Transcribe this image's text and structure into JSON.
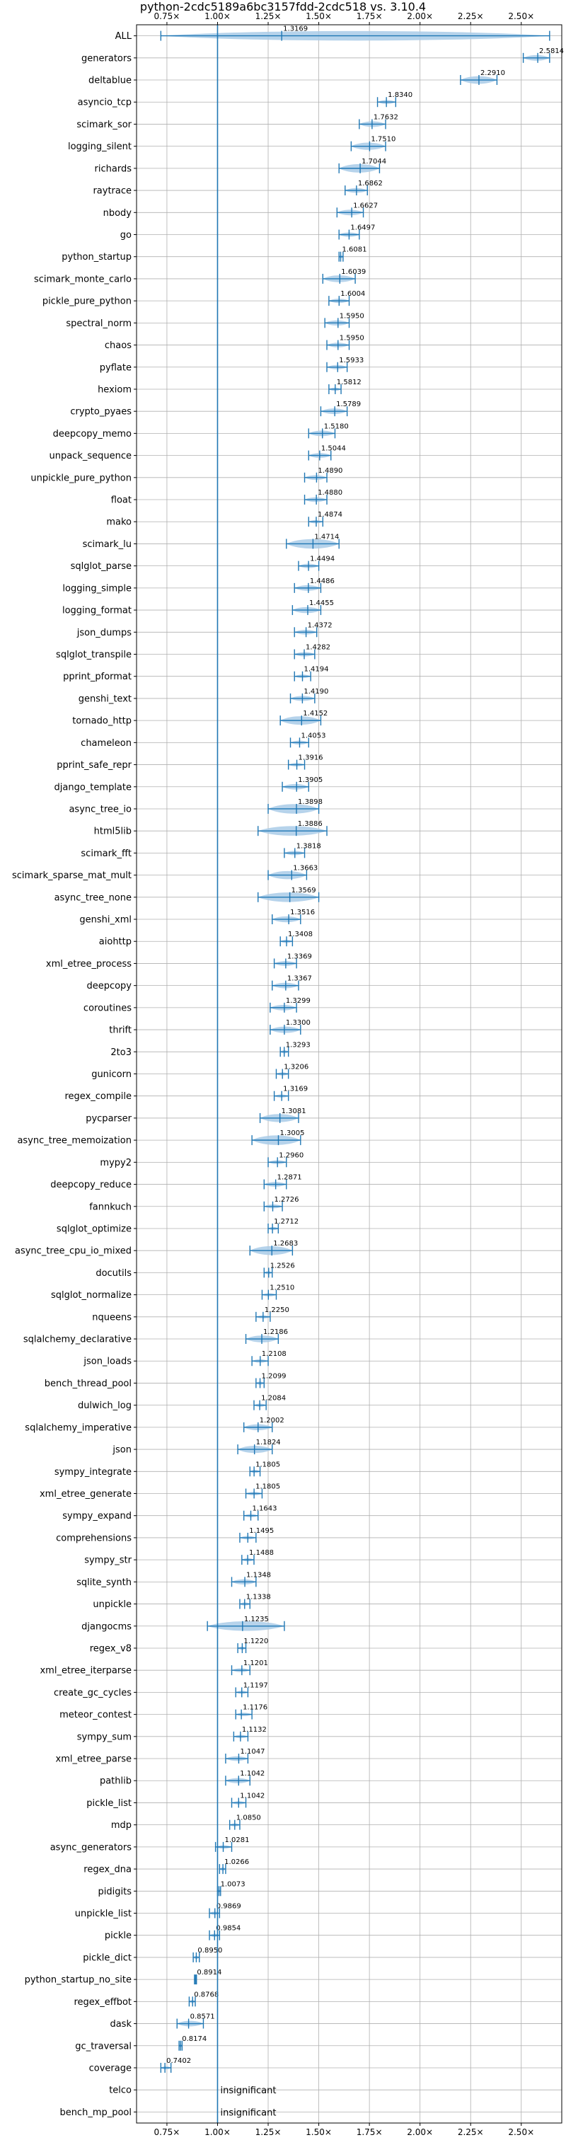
{
  "chart_data": {
    "type": "violin",
    "title": "python-2cdc5189a6bc3157fdd-2cdc518 vs. 3.10.4",
    "xlim": [
      0.6,
      2.7
    ],
    "x_ticks": [
      0.75,
      1.0,
      1.25,
      1.5,
      1.75,
      2.0,
      2.25,
      2.5
    ],
    "x_tick_labels": [
      "0.75×",
      "1.00×",
      "1.25×",
      "1.50×",
      "1.75×",
      "2.00×",
      "2.25×",
      "2.50×"
    ],
    "ticks_top_and_bottom": true,
    "grid": true,
    "reference_line": 1.0,
    "colors": {
      "violin": "#a9cbe8",
      "marker": "#1f77b4",
      "grid": "#b0b0b0"
    },
    "insignificant_label": "insignificant",
    "benchmarks": [
      {
        "name": "ALL",
        "value": 1.3169,
        "label": "1.3169",
        "low": 0.72,
        "high": 2.64
      },
      {
        "name": "generators",
        "value": 2.5814,
        "label": "2.5814",
        "low": 2.51,
        "high": 2.64
      },
      {
        "name": "deltablue",
        "value": 2.291,
        "label": "2.2910",
        "low": 2.2,
        "high": 2.38
      },
      {
        "name": "asyncio_tcp",
        "value": 1.834,
        "label": "1.8340",
        "low": 1.79,
        "high": 1.88
      },
      {
        "name": "scimark_sor",
        "value": 1.7632,
        "label": "1.7632",
        "low": 1.7,
        "high": 1.83
      },
      {
        "name": "logging_silent",
        "value": 1.751,
        "label": "1.7510",
        "low": 1.66,
        "high": 1.83
      },
      {
        "name": "richards",
        "value": 1.7044,
        "label": "1.7044",
        "low": 1.6,
        "high": 1.8
      },
      {
        "name": "raytrace",
        "value": 1.6862,
        "label": "1.6862",
        "low": 1.63,
        "high": 1.74
      },
      {
        "name": "nbody",
        "value": 1.6627,
        "label": "1.6627",
        "low": 1.59,
        "high": 1.72
      },
      {
        "name": "go",
        "value": 1.6497,
        "label": "1.6497",
        "low": 1.6,
        "high": 1.7
      },
      {
        "name": "python_startup",
        "value": 1.6081,
        "label": "1.6081",
        "low": 1.6,
        "high": 1.62
      },
      {
        "name": "scimark_monte_carlo",
        "value": 1.6039,
        "label": "1.6039",
        "low": 1.52,
        "high": 1.68
      },
      {
        "name": "pickle_pure_python",
        "value": 1.6004,
        "label": "1.6004",
        "low": 1.55,
        "high": 1.65
      },
      {
        "name": "spectral_norm",
        "value": 1.595,
        "label": "1.5950",
        "low": 1.53,
        "high": 1.65
      },
      {
        "name": "chaos",
        "value": 1.595,
        "label": "1.5950",
        "low": 1.54,
        "high": 1.65
      },
      {
        "name": "pyflate",
        "value": 1.5933,
        "label": "1.5933",
        "low": 1.54,
        "high": 1.64
      },
      {
        "name": "hexiom",
        "value": 1.5812,
        "label": "1.5812",
        "low": 1.55,
        "high": 1.61
      },
      {
        "name": "crypto_pyaes",
        "value": 1.5789,
        "label": "1.5789",
        "low": 1.51,
        "high": 1.64
      },
      {
        "name": "deepcopy_memo",
        "value": 1.518,
        "label": "1.5180",
        "low": 1.45,
        "high": 1.58
      },
      {
        "name": "unpack_sequence",
        "value": 1.5044,
        "label": "1.5044",
        "low": 1.45,
        "high": 1.56
      },
      {
        "name": "unpickle_pure_python",
        "value": 1.489,
        "label": "1.4890",
        "low": 1.43,
        "high": 1.54
      },
      {
        "name": "float",
        "value": 1.488,
        "label": "1.4880",
        "low": 1.43,
        "high": 1.54
      },
      {
        "name": "mako",
        "value": 1.4874,
        "label": "1.4874",
        "low": 1.45,
        "high": 1.52
      },
      {
        "name": "scimark_lu",
        "value": 1.4714,
        "label": "1.4714",
        "low": 1.34,
        "high": 1.6
      },
      {
        "name": "sqlglot_parse",
        "value": 1.4494,
        "label": "1.4494",
        "low": 1.4,
        "high": 1.5
      },
      {
        "name": "logging_simple",
        "value": 1.4486,
        "label": "1.4486",
        "low": 1.38,
        "high": 1.51
      },
      {
        "name": "logging_format",
        "value": 1.4455,
        "label": "1.4455",
        "low": 1.37,
        "high": 1.51
      },
      {
        "name": "json_dumps",
        "value": 1.4372,
        "label": "1.4372",
        "low": 1.38,
        "high": 1.49
      },
      {
        "name": "sqlglot_transpile",
        "value": 1.4282,
        "label": "1.4282",
        "low": 1.38,
        "high": 1.48
      },
      {
        "name": "pprint_pformat",
        "value": 1.4194,
        "label": "1.4194",
        "low": 1.38,
        "high": 1.46
      },
      {
        "name": "genshi_text",
        "value": 1.419,
        "label": "1.4190",
        "low": 1.36,
        "high": 1.48
      },
      {
        "name": "tornado_http",
        "value": 1.4152,
        "label": "1.4152",
        "low": 1.31,
        "high": 1.51
      },
      {
        "name": "chameleon",
        "value": 1.4053,
        "label": "1.4053",
        "low": 1.36,
        "high": 1.45
      },
      {
        "name": "pprint_safe_repr",
        "value": 1.3916,
        "label": "1.3916",
        "low": 1.35,
        "high": 1.43
      },
      {
        "name": "django_template",
        "value": 1.3905,
        "label": "1.3905",
        "low": 1.32,
        "high": 1.45
      },
      {
        "name": "async_tree_io",
        "value": 1.3898,
        "label": "1.3898",
        "low": 1.25,
        "high": 1.5
      },
      {
        "name": "html5lib",
        "value": 1.3886,
        "label": "1.3886",
        "low": 1.2,
        "high": 1.54
      },
      {
        "name": "scimark_fft",
        "value": 1.3818,
        "label": "1.3818",
        "low": 1.33,
        "high": 1.43
      },
      {
        "name": "scimark_sparse_mat_mult",
        "value": 1.3663,
        "label": "1.3663",
        "low": 1.25,
        "high": 1.44
      },
      {
        "name": "async_tree_none",
        "value": 1.3569,
        "label": "1.3569",
        "low": 1.2,
        "high": 1.5
      },
      {
        "name": "genshi_xml",
        "value": 1.3516,
        "label": "1.3516",
        "low": 1.27,
        "high": 1.41
      },
      {
        "name": "aiohttp",
        "value": 1.3408,
        "label": "1.3408",
        "low": 1.31,
        "high": 1.37
      },
      {
        "name": "xml_etree_process",
        "value": 1.3369,
        "label": "1.3369",
        "low": 1.28,
        "high": 1.39
      },
      {
        "name": "deepcopy",
        "value": 1.3367,
        "label": "1.3367",
        "low": 1.27,
        "high": 1.4
      },
      {
        "name": "coroutines",
        "value": 1.3299,
        "label": "1.3299",
        "low": 1.26,
        "high": 1.39
      },
      {
        "name": "thrift",
        "value": 1.33,
        "label": "1.3300",
        "low": 1.26,
        "high": 1.41
      },
      {
        "name": "2to3",
        "value": 1.3293,
        "label": "1.3293",
        "low": 1.31,
        "high": 1.35
      },
      {
        "name": "gunicorn",
        "value": 1.3206,
        "label": "1.3206",
        "low": 1.29,
        "high": 1.35
      },
      {
        "name": "regex_compile",
        "value": 1.3169,
        "label": "1.3169",
        "low": 1.28,
        "high": 1.35
      },
      {
        "name": "pycparser",
        "value": 1.3081,
        "label": "1.3081",
        "low": 1.21,
        "high": 1.4
      },
      {
        "name": "async_tree_memoization",
        "value": 1.3005,
        "label": "1.3005",
        "low": 1.17,
        "high": 1.41
      },
      {
        "name": "mypy2",
        "value": 1.296,
        "label": "1.2960",
        "low": 1.25,
        "high": 1.34
      },
      {
        "name": "deepcopy_reduce",
        "value": 1.2871,
        "label": "1.2871",
        "low": 1.23,
        "high": 1.34
      },
      {
        "name": "fannkuch",
        "value": 1.2726,
        "label": "1.2726",
        "low": 1.23,
        "high": 1.32
      },
      {
        "name": "sqlglot_optimize",
        "value": 1.2712,
        "label": "1.2712",
        "low": 1.25,
        "high": 1.3
      },
      {
        "name": "async_tree_cpu_io_mixed",
        "value": 1.2683,
        "label": "1.2683",
        "low": 1.16,
        "high": 1.37
      },
      {
        "name": "docutils",
        "value": 1.2526,
        "label": "1.2526",
        "low": 1.23,
        "high": 1.27
      },
      {
        "name": "sqlglot_normalize",
        "value": 1.251,
        "label": "1.2510",
        "low": 1.22,
        "high": 1.29
      },
      {
        "name": "nqueens",
        "value": 1.225,
        "label": "1.2250",
        "low": 1.19,
        "high": 1.26
      },
      {
        "name": "sqlalchemy_declarative",
        "value": 1.2186,
        "label": "1.2186",
        "low": 1.14,
        "high": 1.3
      },
      {
        "name": "json_loads",
        "value": 1.2108,
        "label": "1.2108",
        "low": 1.17,
        "high": 1.25
      },
      {
        "name": "bench_thread_pool",
        "value": 1.2099,
        "label": "1.2099",
        "low": 1.19,
        "high": 1.23
      },
      {
        "name": "dulwich_log",
        "value": 1.2084,
        "label": "1.2084",
        "low": 1.18,
        "high": 1.24
      },
      {
        "name": "sqlalchemy_imperative",
        "value": 1.2002,
        "label": "1.2002",
        "low": 1.13,
        "high": 1.27
      },
      {
        "name": "json",
        "value": 1.1824,
        "label": "1.1824",
        "low": 1.1,
        "high": 1.27
      },
      {
        "name": "sympy_integrate",
        "value": 1.1805,
        "label": "1.1805",
        "low": 1.16,
        "high": 1.21
      },
      {
        "name": "xml_etree_generate",
        "value": 1.1805,
        "label": "1.1805",
        "low": 1.14,
        "high": 1.22
      },
      {
        "name": "sympy_expand",
        "value": 1.1643,
        "label": "1.1643",
        "low": 1.13,
        "high": 1.2
      },
      {
        "name": "comprehensions",
        "value": 1.1495,
        "label": "1.1495",
        "low": 1.11,
        "high": 1.19
      },
      {
        "name": "sympy_str",
        "value": 1.1488,
        "label": "1.1488",
        "low": 1.12,
        "high": 1.18
      },
      {
        "name": "sqlite_synth",
        "value": 1.1348,
        "label": "1.1348",
        "low": 1.07,
        "high": 1.19
      },
      {
        "name": "unpickle",
        "value": 1.1338,
        "label": "1.1338",
        "low": 1.11,
        "high": 1.16
      },
      {
        "name": "djangocms",
        "value": 1.1235,
        "label": "1.1235",
        "low": 0.95,
        "high": 1.33
      },
      {
        "name": "regex_v8",
        "value": 1.122,
        "label": "1.1220",
        "low": 1.1,
        "high": 1.14
      },
      {
        "name": "xml_etree_iterparse",
        "value": 1.1201,
        "label": "1.1201",
        "low": 1.07,
        "high": 1.16
      },
      {
        "name": "create_gc_cycles",
        "value": 1.1197,
        "label": "1.1197",
        "low": 1.09,
        "high": 1.15
      },
      {
        "name": "meteor_contest",
        "value": 1.1176,
        "label": "1.1176",
        "low": 1.09,
        "high": 1.17
      },
      {
        "name": "sympy_sum",
        "value": 1.1132,
        "label": "1.1132",
        "low": 1.08,
        "high": 1.15
      },
      {
        "name": "xml_etree_parse",
        "value": 1.1047,
        "label": "1.1047",
        "low": 1.04,
        "high": 1.15
      },
      {
        "name": "pathlib",
        "value": 1.1042,
        "label": "1.1042",
        "low": 1.04,
        "high": 1.16
      },
      {
        "name": "pickle_list",
        "value": 1.1042,
        "label": "1.1042",
        "low": 1.07,
        "high": 1.14
      },
      {
        "name": "mdp",
        "value": 1.085,
        "label": "1.0850",
        "low": 1.06,
        "high": 1.11
      },
      {
        "name": "async_generators",
        "value": 1.0281,
        "label": "1.0281",
        "low": 0.99,
        "high": 1.07
      },
      {
        "name": "regex_dna",
        "value": 1.0266,
        "label": "1.0266",
        "low": 1.01,
        "high": 1.04
      },
      {
        "name": "pidigits",
        "value": 1.0073,
        "label": "1.0073",
        "low": 1.0,
        "high": 1.015
      },
      {
        "name": "unpickle_list",
        "value": 0.9869,
        "label": "0.9869",
        "low": 0.96,
        "high": 1.01
      },
      {
        "name": "pickle",
        "value": 0.9854,
        "label": "0.9854",
        "low": 0.96,
        "high": 1.01
      },
      {
        "name": "pickle_dict",
        "value": 0.895,
        "label": "0.8950",
        "low": 0.88,
        "high": 0.91
      },
      {
        "name": "python_startup_no_site",
        "value": 0.8914,
        "label": "0.8914",
        "low": 0.886,
        "high": 0.896
      },
      {
        "name": "regex_effbot",
        "value": 0.8768,
        "label": "0.8768",
        "low": 0.86,
        "high": 0.89
      },
      {
        "name": "dask",
        "value": 0.8571,
        "label": "0.8571",
        "low": 0.8,
        "high": 0.93
      },
      {
        "name": "gc_traversal",
        "value": 0.8174,
        "label": "0.8174",
        "low": 0.81,
        "high": 0.825
      },
      {
        "name": "coverage",
        "value": 0.7402,
        "label": "0.7402",
        "low": 0.72,
        "high": 0.77
      },
      {
        "name": "telco",
        "value": null,
        "label": null,
        "low": null,
        "high": null
      },
      {
        "name": "bench_mp_pool",
        "value": null,
        "label": null,
        "low": null,
        "high": null
      }
    ]
  }
}
